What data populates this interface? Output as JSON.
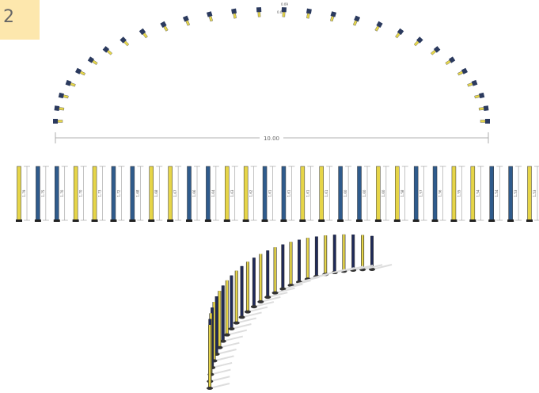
{
  "badge": "2",
  "plan": {
    "span_label": "10.00",
    "detail_labels": [
      "0.09",
      "0.09"
    ]
  },
  "elevation": {
    "column_labels": [
      "1.79",
      "1.75",
      "1.70",
      "1.70",
      "1.73",
      "1.72",
      "1.68",
      "1.68",
      "1.67",
      "1.66",
      "1.64",
      "1.63",
      "1.62",
      "1.61",
      "1.61",
      "1.61",
      "1.61",
      "1.60",
      "1.60",
      "1.60",
      "1.58",
      "1.57",
      "1.56",
      "1.55",
      "1.54",
      "1.54",
      "1.53",
      "1.53"
    ]
  }
}
